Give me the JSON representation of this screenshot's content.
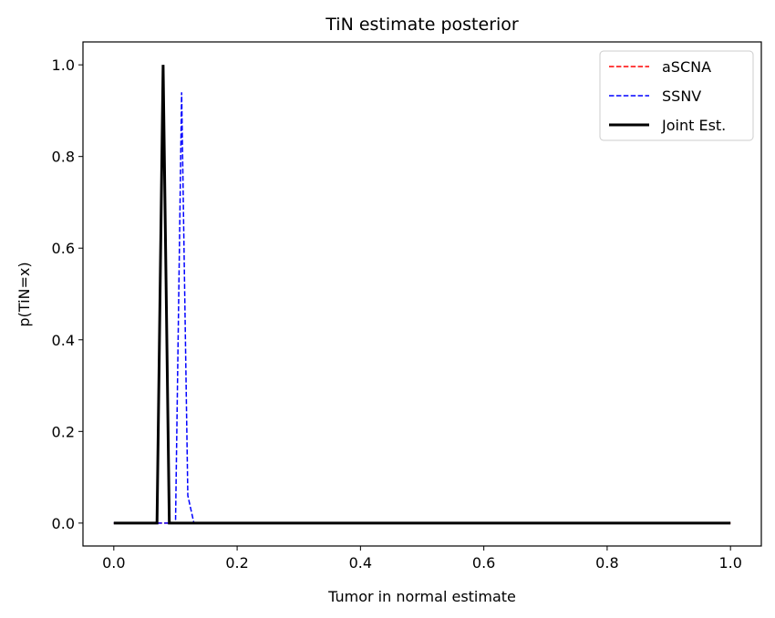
{
  "chart_data": {
    "type": "line",
    "title": "TiN estimate posterior",
    "xlabel": "Tumor in normal estimate",
    "ylabel": "p(TiN=x)",
    "xlim": [
      -0.05,
      1.05
    ],
    "ylim": [
      -0.05,
      1.05
    ],
    "xticks": [
      0.0,
      0.2,
      0.4,
      0.6,
      0.8,
      1.0
    ],
    "xtick_labels": [
      "0.0",
      "0.2",
      "0.4",
      "0.6",
      "0.8",
      "1.0"
    ],
    "yticks": [
      0.0,
      0.2,
      0.4,
      0.6,
      0.8,
      1.0
    ],
    "ytick_labels": [
      "0.0",
      "0.2",
      "0.4",
      "0.6",
      "0.8",
      "1.0"
    ],
    "grid": false,
    "legend_position": "top-right",
    "series": [
      {
        "name": "aSCNA",
        "color": "#ff0000",
        "style": "dashed",
        "x": [
          0.0,
          1.0
        ],
        "y": [
          0.0,
          0.0
        ]
      },
      {
        "name": "SSNV",
        "color": "#0000ff",
        "style": "dashed",
        "x": [
          0.0,
          0.1,
          0.11,
          0.12,
          0.13,
          1.0
        ],
        "y": [
          0.0,
          0.0,
          0.94,
          0.06,
          0.0,
          0.0
        ]
      },
      {
        "name": "Joint Est.",
        "color": "#000000",
        "style": "solid",
        "x": [
          0.0,
          0.07,
          0.08,
          0.09,
          1.0
        ],
        "y": [
          0.0,
          0.0,
          1.0,
          0.0,
          0.0
        ]
      }
    ]
  }
}
